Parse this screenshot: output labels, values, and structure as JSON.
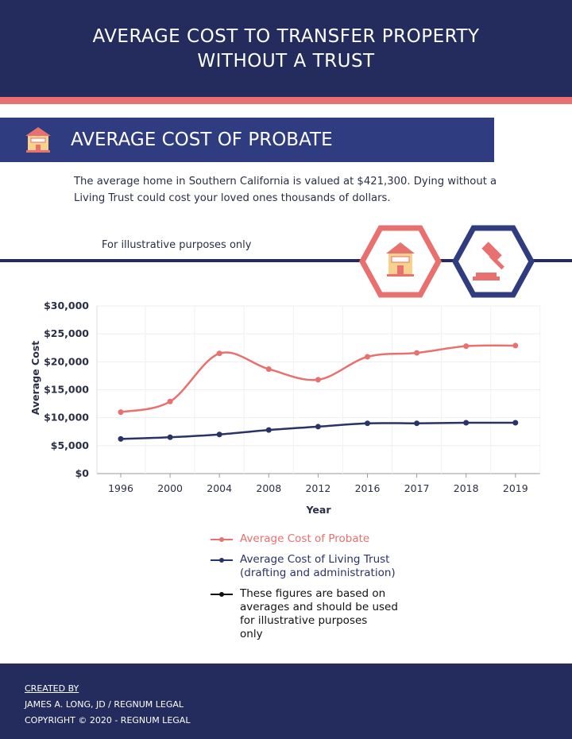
{
  "header": {
    "title_line1": "AVERAGE COST TO TRANSFER PROPERTY",
    "title_line2": "WITHOUT A TRUST"
  },
  "banner": {
    "title": "AVERAGE COST OF PROBATE",
    "icon": "house-icon"
  },
  "intro": "The average home in Southern California is valued at $421,300. Dying without a Living Trust could cost your loved ones thousands of dollars.",
  "note": "For illustrative purposes only",
  "icons": [
    "house-icon",
    "gavel-icon"
  ],
  "colors": {
    "navy": "#232c5c",
    "coral": "#e8706f",
    "banner": "#2f3d80"
  },
  "chart_data": {
    "type": "line",
    "xlabel": "Year",
    "ylabel": "Average Cost",
    "categories": [
      "1996",
      "2000",
      "2004",
      "2008",
      "2012",
      "2016",
      "2017",
      "2018",
      "2019"
    ],
    "ylim": [
      0,
      30000
    ],
    "yticks": [
      "$0",
      "$5,000",
      "$10,000",
      "$15,000",
      "$20,000",
      "$25,000",
      "$30,000"
    ],
    "grid": true,
    "legend_position": "bottom",
    "series": [
      {
        "name": "Average Cost of Probate",
        "color": "#e8706f",
        "values": [
          11000,
          12900,
          21500,
          18700,
          16800,
          20900,
          21600,
          22800,
          22900
        ]
      },
      {
        "name": "Average Cost of Living Trust (drafting and administration)",
        "color": "#2a3366",
        "values": [
          6200,
          6500,
          7000,
          7800,
          8400,
          9000,
          9000,
          9100,
          9100
        ]
      }
    ],
    "legend": [
      {
        "line1": "Average Cost of Probate",
        "color": "#e8706f"
      },
      {
        "line1": "Average Cost of Living Trust",
        "line2": "(drafting and administration)",
        "color": "#2a3366"
      },
      {
        "line1": "These figures are based on",
        "line2": "averages and should be used",
        "line3": "for illustrative purposes",
        "line4": "only",
        "color": "#111111"
      }
    ]
  },
  "footer": {
    "created_by": "CREATED BY",
    "author": "JAMES A. LONG, JD / REGNUM LEGAL",
    "copyright": "COPYRIGHT © 2020 - REGNUM LEGAL"
  }
}
